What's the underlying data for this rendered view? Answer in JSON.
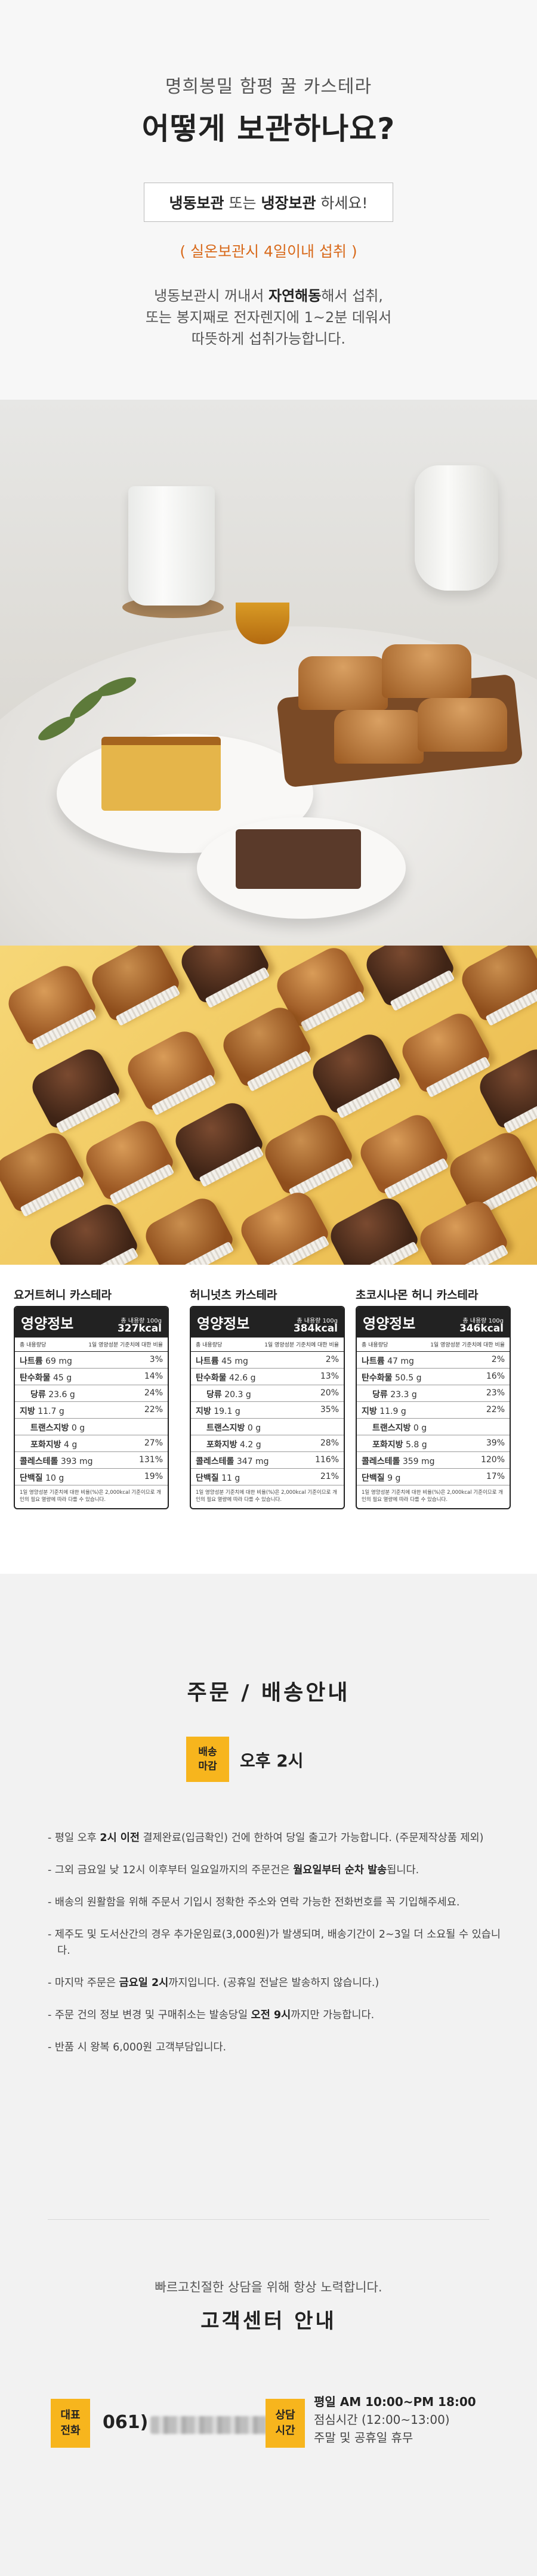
{
  "storage": {
    "subtitle": "명희봉밀 함평 꿀 카스테라",
    "title": "어떻게 보관하나요?",
    "boxed_freeze": "냉동보관",
    "boxed_or": " 또는 ",
    "boxed_fridge": "냉장보관",
    "boxed_end": " 하세요!",
    "warning": "( 실온보관시 4일이내 섭취 )",
    "desc_line1_a": "냉동보관시 꺼내서 ",
    "desc_line1_b": "자연해동",
    "desc_line1_c": "해서 섭취,",
    "desc_line2": "또는 봉지째로 전자렌지에 1~2분 데워서",
    "desc_line3": "따뜻하게 섭취가능합니다."
  },
  "nutrition": {
    "header": "영양정보",
    "total_label": "총 내용량 100g",
    "subhead_left": "총 내용량당",
    "subhead_right": "1일 영양성분 기준치에 대한 비율",
    "footnote": "1일 영양성분 기준치에 대한 비율(%)은 2,000kcal 기준이므로 개인의 필요 열량에 따라 다를 수 있습니다.",
    "products": [
      {
        "name": "요거트허니 카스테라",
        "kcal": "327kcal",
        "rows": [
          {
            "label": "나트륨",
            "amount": "69 mg",
            "pct": "3%"
          },
          {
            "label": "탄수화물",
            "amount": "45 g",
            "pct": "14%"
          },
          {
            "label": "당류",
            "amount": "23.6 g",
            "pct": "24%",
            "indent": true
          },
          {
            "label": "지방",
            "amount": "11.7 g",
            "pct": "22%"
          },
          {
            "label": "트랜스지방",
            "amount": "0 g",
            "pct": "",
            "indent": true
          },
          {
            "label": "포화지방",
            "amount": "4 g",
            "pct": "27%",
            "indent": true
          },
          {
            "label": "콜레스테롤",
            "amount": "393 mg",
            "pct": "131%"
          },
          {
            "label": "단백질",
            "amount": "10 g",
            "pct": "19%"
          }
        ]
      },
      {
        "name": "허니넛츠 카스테라",
        "kcal": "384kcal",
        "rows": [
          {
            "label": "나트륨",
            "amount": "45 mg",
            "pct": "2%"
          },
          {
            "label": "탄수화물",
            "amount": "42.6 g",
            "pct": "13%"
          },
          {
            "label": "당류",
            "amount": "20.3 g",
            "pct": "20%",
            "indent": true
          },
          {
            "label": "지방",
            "amount": "19.1 g",
            "pct": "35%"
          },
          {
            "label": "트랜스지방",
            "amount": "0 g",
            "pct": "",
            "indent": true
          },
          {
            "label": "포화지방",
            "amount": "4.2 g",
            "pct": "28%",
            "indent": true
          },
          {
            "label": "콜레스테롤",
            "amount": "347 mg",
            "pct": "116%"
          },
          {
            "label": "단백질",
            "amount": "11 g",
            "pct": "21%"
          }
        ]
      },
      {
        "name": "초코시나몬 허니 카스테라",
        "kcal": "346kcal",
        "rows": [
          {
            "label": "나트륨",
            "amount": "47 mg",
            "pct": "2%"
          },
          {
            "label": "탄수화물",
            "amount": "50.5 g",
            "pct": "16%"
          },
          {
            "label": "당류",
            "amount": "23.3 g",
            "pct": "23%",
            "indent": true
          },
          {
            "label": "지방",
            "amount": "11.9 g",
            "pct": "22%"
          },
          {
            "label": "트랜스지방",
            "amount": "0 g",
            "pct": "",
            "indent": true
          },
          {
            "label": "포화지방",
            "amount": "5.8 g",
            "pct": "39%",
            "indent": true
          },
          {
            "label": "콜레스테롤",
            "amount": "359 mg",
            "pct": "120%"
          },
          {
            "label": "단백질",
            "amount": "9 g",
            "pct": "17%"
          }
        ]
      }
    ]
  },
  "delivery": {
    "title": "주문 / 배송안내",
    "deadline_tag_1": "배송",
    "deadline_tag_2": "마감",
    "deadline_time": "오후 2시",
    "notes": [
      {
        "parts": [
          [
            "- 평일 오후 ",
            false
          ],
          [
            "2시 이전",
            true
          ],
          [
            " 결제완료(입금확인) 건에 한하여 당일 출고가 가능합니다. (주문제작상품 제외)",
            false
          ]
        ]
      },
      {
        "parts": [
          [
            "- 그외 금요일 낮 12시 이후부터 일요일까지의 주문건은 ",
            false
          ],
          [
            "월요일부터 순차 발송",
            true
          ],
          [
            "됩니다.",
            false
          ]
        ]
      },
      {
        "parts": [
          [
            "- 배송의 원활함을 위해 주문서 기입시 정확한 주소와 연락 가능한 전화번호를 꼭 기입해주세요.",
            false
          ]
        ]
      },
      {
        "parts": [
          [
            "- 제주도 및 도서산간의 경우 추가운임료(3,000원)가 발생되며, 배송기간이 2~3일 더 소요될 수 있습니다.",
            false
          ]
        ]
      },
      {
        "parts": [
          [
            "- 마지막 주문은 ",
            false
          ],
          [
            "금요일 2시",
            true
          ],
          [
            "까지입니다. (공휴일 전날은 발송하지 않습니다.)",
            false
          ]
        ]
      },
      {
        "parts": [
          [
            "- 주문 건의 정보 변경 및 구매취소는 발송당일 ",
            false
          ],
          [
            "오전 9시",
            true
          ],
          [
            "까지만 가능합니다.",
            false
          ]
        ]
      },
      {
        "parts": [
          [
            "- 반품 시 왕복 6,000원 고객부담입니다.",
            false
          ]
        ]
      }
    ]
  },
  "cs": {
    "subtitle": "빠르고친절한 상담을 위해 항상 노력합니다.",
    "title": "고객센터 안내",
    "phone_tag_1": "대표",
    "phone_tag_2": "전화",
    "phone_prefix": "061)",
    "hours_tag_1": "상담",
    "hours_tag_2": "시간",
    "hours_line1": "평일 AM 10:00~PM 18:00",
    "hours_line2": "점심시간 (12:00~13:00)",
    "hours_line3": "주말 및 공휴일 휴무"
  },
  "colors": {
    "accent_yellow": "#f7b51d",
    "warning_orange": "#d8691a"
  }
}
